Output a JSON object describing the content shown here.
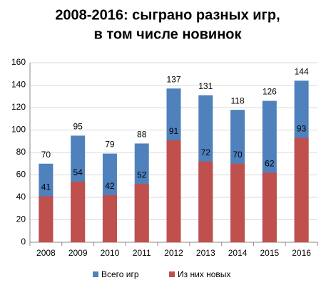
{
  "chart_data": {
    "type": "bar",
    "barmode": "overlay",
    "title": [
      "2008-2016: сыграно разных игр,",
      "в том числе новинок"
    ],
    "categories": [
      "2008",
      "2009",
      "2010",
      "2011",
      "2012",
      "2013",
      "2014",
      "2015",
      "2016"
    ],
    "series": [
      {
        "name": "Всего игр",
        "color": "#4f81bd",
        "values": [
          70,
          95,
          79,
          88,
          137,
          131,
          118,
          126,
          144
        ]
      },
      {
        "name": "Из них новых",
        "color": "#c0504d",
        "values": [
          41,
          54,
          42,
          52,
          91,
          72,
          70,
          62,
          93
        ]
      }
    ],
    "ylim": [
      0,
      160
    ],
    "yticks": [
      0,
      20,
      40,
      60,
      80,
      100,
      120,
      140,
      160
    ],
    "grid": true,
    "legend": "bottom"
  }
}
